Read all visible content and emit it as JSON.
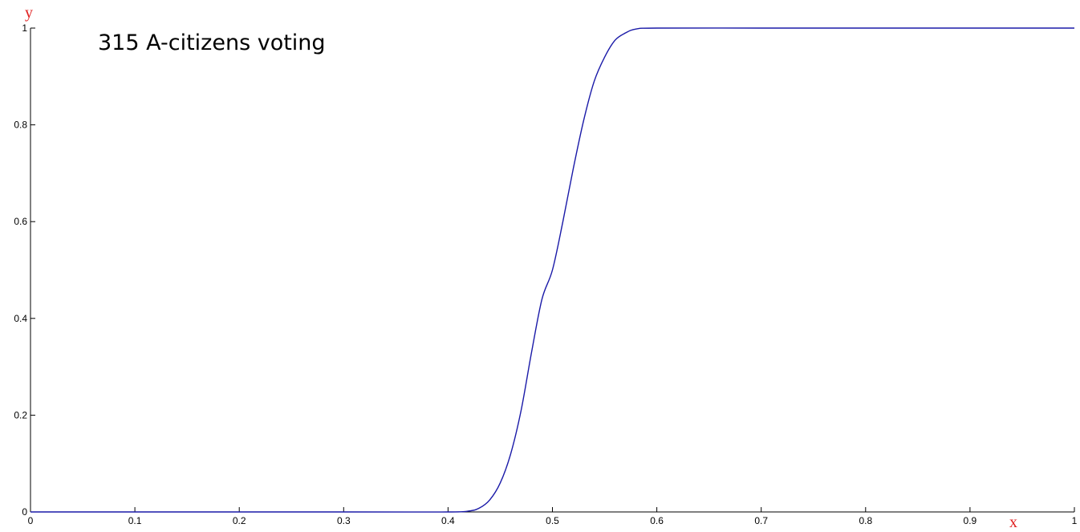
{
  "chart_data": {
    "type": "line",
    "title": "315 A-citizens voting",
    "xlabel": "x",
    "ylabel": "y",
    "xlim": [
      0,
      1
    ],
    "ylim": [
      0,
      1
    ],
    "grid": false,
    "legend": "none",
    "colors": {
      "line": "#1a1aa8",
      "axis": "#000000",
      "axis_label": "#e02020"
    },
    "x_ticks": [
      {
        "v": 0,
        "label": "0"
      },
      {
        "v": 0.1,
        "label": "0.1"
      },
      {
        "v": 0.2,
        "label": "0.2"
      },
      {
        "v": 0.3,
        "label": "0.3"
      },
      {
        "v": 0.4,
        "label": "0.4"
      },
      {
        "v": 0.5,
        "label": "0.5"
      },
      {
        "v": 0.6,
        "label": "0.6"
      },
      {
        "v": 0.7,
        "label": "0.7"
      },
      {
        "v": 0.8,
        "label": "0.8"
      },
      {
        "v": 0.9,
        "label": "0.9"
      },
      {
        "v": 1,
        "label": "1"
      }
    ],
    "y_ticks": [
      {
        "v": 0,
        "label": "0"
      },
      {
        "v": 0.2,
        "label": "0.2"
      },
      {
        "v": 0.4,
        "label": "0.4"
      },
      {
        "v": 0.6,
        "label": "0.6"
      },
      {
        "v": 0.8,
        "label": "0.8"
      },
      {
        "v": 1,
        "label": "1"
      }
    ],
    "series": [
      {
        "x": [
          0,
          0.3,
          0.4,
          0.42,
          0.43,
          0.44,
          0.45,
          0.46,
          0.47,
          0.48,
          0.49,
          0.5,
          0.51,
          0.52,
          0.53,
          0.54,
          0.55,
          0.56,
          0.57,
          0.58,
          0.6,
          0.7,
          0.8,
          0.9,
          1
        ],
        "values": [
          0,
          0,
          0,
          0.002,
          0.008,
          0.025,
          0.06,
          0.12,
          0.21,
          0.33,
          0.44,
          0.5,
          0.6,
          0.71,
          0.81,
          0.89,
          0.94,
          0.975,
          0.99,
          0.998,
          1,
          1,
          1,
          1,
          1
        ]
      }
    ]
  }
}
